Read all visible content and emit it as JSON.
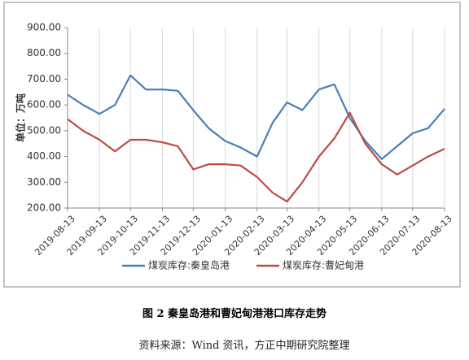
{
  "chart_data": {
    "type": "line",
    "y_label": "单位：万吨",
    "caption": "图 2  秦皇岛港和曹妃甸港港口库存走势",
    "source": "资料来源：Wind 资讯，方正中期研究院整理",
    "x": [
      "2019-08-13",
      "2019-08-28",
      "2019-09-13",
      "2019-09-28",
      "2019-10-13",
      "2019-10-28",
      "2019-11-13",
      "2019-11-28",
      "2019-12-13",
      "2019-12-28",
      "2020-01-13",
      "2020-01-28",
      "2020-02-13",
      "2020-02-28",
      "2020-03-13",
      "2020-03-28",
      "2020-04-13",
      "2020-04-28",
      "2020-05-13",
      "2020-05-28",
      "2020-06-13",
      "2020-06-28",
      "2020-07-13",
      "2020-07-28",
      "2020-08-13"
    ],
    "series": [
      {
        "name": "煤炭库存:秦皇岛港",
        "color": "#4a7ebb",
        "values": [
          640,
          600,
          565,
          600,
          715,
          660,
          660,
          655,
          580,
          510,
          460,
          435,
          400,
          530,
          610,
          580,
          660,
          680,
          550,
          460,
          390,
          440,
          490,
          510,
          585
        ]
      },
      {
        "name": "煤炭库存:曹妃甸港",
        "color": "#be4b48",
        "values": [
          545,
          500,
          465,
          420,
          465,
          465,
          455,
          440,
          350,
          370,
          370,
          365,
          320,
          260,
          225,
          300,
          400,
          470,
          570,
          450,
          370,
          330,
          365,
          400,
          430
        ]
      }
    ],
    "xticks": [
      "2019-08-13",
      "2019-09-13",
      "2019-10-13",
      "2019-11-13",
      "2019-12-13",
      "2020-01-13",
      "2020-02-13",
      "2020-03-13",
      "2020-04-13",
      "2020-05-13",
      "2020-06-13",
      "2020-07-13",
      "2020-08-13"
    ],
    "xlim": [
      "2019-08-13",
      "2020-08-13"
    ],
    "ylim": [
      200,
      900
    ],
    "yticks": [
      {
        "value": 200,
        "label": "200.00"
      },
      {
        "value": 300,
        "label": "300.00"
      },
      {
        "value": 400,
        "label": "400.00"
      },
      {
        "value": 500,
        "label": "500.00"
      },
      {
        "value": 600,
        "label": "600.00"
      },
      {
        "value": 700,
        "label": "700.00"
      },
      {
        "value": 800,
        "label": "800.00"
      },
      {
        "value": 900,
        "label": "900.00"
      }
    ],
    "grid": true,
    "legend": "bottom"
  }
}
